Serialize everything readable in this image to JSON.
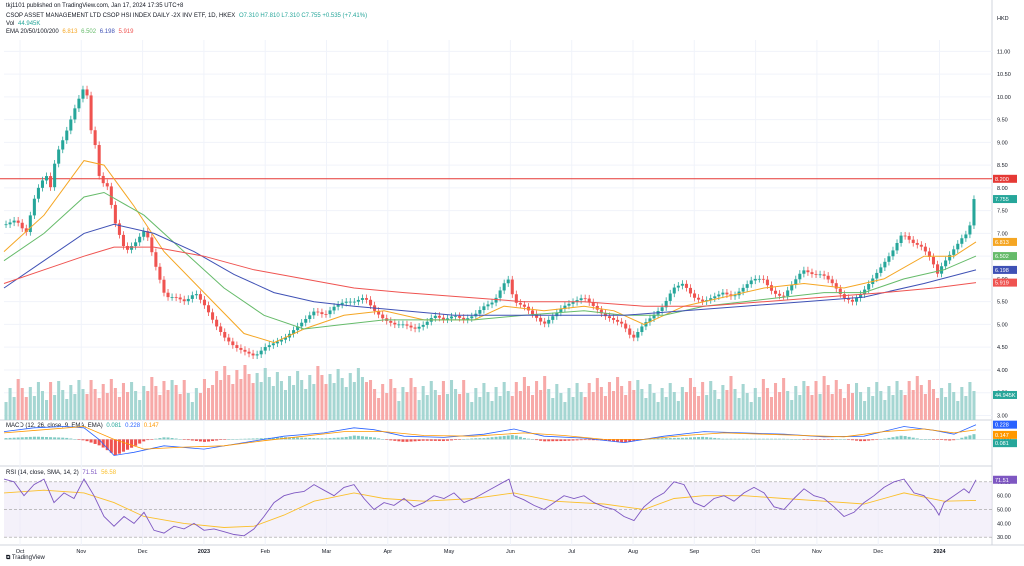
{
  "header": {
    "published": "tkj1101 published on TradingView.com, Jan 17, 2024 17:35 UTC+8",
    "symbol": "CSOP ASSET MANAGEMENT LTD CSOP HSI INDEX DAILY -2X INV ETF, 1D, HKEX",
    "ohlc": "O7.310  H7.810  L7.310  C7.755  +0.535 (+7.41%)",
    "vol_label": "Vol",
    "vol_value": "44.945K",
    "ema_label": "EMA 20/50/100/200",
    "ema_values": [
      "6.813",
      "6.502",
      "6.198",
      "5.919"
    ]
  },
  "macd_label": "MACD (12, 26, close, 9, EMA, EMA)",
  "macd_values": [
    "0.081",
    "0.228",
    "0.147"
  ],
  "rsi_label": "RSI (14, close, SMA, 14, 2)",
  "rsi_values": [
    "71.51",
    "56.58"
  ],
  "currency": "HKD",
  "footer": "TradingView",
  "colors": {
    "up": "#26a69a",
    "down": "#ef5350",
    "ema20": "#f5a623",
    "ema50": "#66bb6a",
    "ema100": "#3f51b5",
    "ema200": "#ef5350",
    "resistance": "#e53935",
    "rsi": "#7e57c2",
    "rsi_ma": "#fbc02d",
    "macd": "#2962ff",
    "signal": "#ff9800"
  },
  "chart_data": {
    "type": "candlestick",
    "x_labels": [
      "Oct",
      "Nov",
      "Dec",
      "2023",
      "Feb",
      "Mar",
      "Apr",
      "May",
      "Jun",
      "Jul",
      "Aug",
      "Sep",
      "Oct",
      "Nov",
      "Dec",
      "2024"
    ],
    "price_ticks": [
      "11.00",
      "10.50",
      "10.00",
      "9.50",
      "9.00",
      "8.50",
      "8.00",
      "7.50",
      "7.00",
      "6.50",
      "6.00",
      "5.50",
      "5.00",
      "4.50",
      "4.00",
      "3.50",
      "3.00"
    ],
    "ylim": [
      2.9,
      11.25
    ],
    "resistance": 8.2,
    "price_badges": [
      {
        "label": "8.200",
        "value": 8.2,
        "color": "#e53935"
      },
      {
        "label": "7.755",
        "value": 7.755,
        "color": "#26a69a"
      },
      {
        "label": "6.813",
        "value": 6.813,
        "color": "#f5a623"
      },
      {
        "label": "6.502",
        "value": 6.502,
        "color": "#66bb6a"
      },
      {
        "label": "6.198",
        "value": 6.198,
        "color": "#3f51b5"
      },
      {
        "label": "5.919",
        "value": 5.919,
        "color": "#ef5350"
      },
      {
        "label": "44.945K",
        "value": 3.45,
        "color": "#26a69a"
      }
    ],
    "close_path": [
      [
        0,
        7.2
      ],
      [
        10,
        7.3
      ],
      [
        20,
        7.0
      ],
      [
        30,
        7.9
      ],
      [
        40,
        8.3
      ],
      [
        45,
        8.0
      ],
      [
        50,
        8.7
      ],
      [
        60,
        9.2
      ],
      [
        70,
        9.8
      ],
      [
        80,
        10.3
      ],
      [
        85,
        9.3
      ],
      [
        90,
        8.9
      ],
      [
        95,
        8.0
      ],
      [
        100,
        8.2
      ],
      [
        110,
        7.2
      ],
      [
        120,
        6.6
      ],
      [
        130,
        6.8
      ],
      [
        140,
        7.1
      ],
      [
        150,
        6.3
      ],
      [
        160,
        5.6
      ],
      [
        170,
        5.6
      ],
      [
        180,
        5.5
      ],
      [
        190,
        5.7
      ],
      [
        200,
        5.4
      ],
      [
        210,
        5.0
      ],
      [
        220,
        4.7
      ],
      [
        230,
        4.5
      ],
      [
        240,
        4.4
      ],
      [
        250,
        4.3
      ],
      [
        260,
        4.5
      ],
      [
        270,
        4.6
      ],
      [
        280,
        4.7
      ],
      [
        290,
        4.9
      ],
      [
        300,
        5.1
      ],
      [
        310,
        5.3
      ],
      [
        320,
        5.2
      ],
      [
        330,
        5.4
      ],
      [
        340,
        5.5
      ],
      [
        350,
        5.5
      ],
      [
        360,
        5.6
      ],
      [
        370,
        5.3
      ],
      [
        380,
        5.1
      ],
      [
        390,
        5.0
      ],
      [
        400,
        5.0
      ],
      [
        410,
        4.9
      ],
      [
        420,
        5.0
      ],
      [
        430,
        5.2
      ],
      [
        440,
        5.1
      ],
      [
        450,
        5.2
      ],
      [
        460,
        5.1
      ],
      [
        470,
        5.2
      ],
      [
        480,
        5.4
      ],
      [
        490,
        5.5
      ],
      [
        500,
        5.9
      ],
      [
        505,
        6.0
      ],
      [
        510,
        5.5
      ],
      [
        520,
        5.4
      ],
      [
        530,
        5.2
      ],
      [
        540,
        5.0
      ],
      [
        550,
        5.2
      ],
      [
        560,
        5.4
      ],
      [
        570,
        5.5
      ],
      [
        580,
        5.6
      ],
      [
        590,
        5.4
      ],
      [
        600,
        5.2
      ],
      [
        610,
        5.1
      ],
      [
        620,
        5.0
      ],
      [
        625,
        4.8
      ],
      [
        630,
        4.7
      ],
      [
        640,
        5.0
      ],
      [
        650,
        5.2
      ],
      [
        660,
        5.4
      ],
      [
        670,
        5.8
      ],
      [
        680,
        5.9
      ],
      [
        690,
        5.6
      ],
      [
        700,
        5.5
      ],
      [
        710,
        5.6
      ],
      [
        720,
        5.7
      ],
      [
        730,
        5.6
      ],
      [
        740,
        5.8
      ],
      [
        750,
        6.0
      ],
      [
        760,
        6.0
      ],
      [
        770,
        5.7
      ],
      [
        780,
        5.6
      ],
      [
        790,
        5.9
      ],
      [
        800,
        6.2
      ],
      [
        810,
        6.1
      ],
      [
        820,
        6.1
      ],
      [
        830,
        5.9
      ],
      [
        840,
        5.6
      ],
      [
        850,
        5.5
      ],
      [
        860,
        5.7
      ],
      [
        870,
        6.0
      ],
      [
        880,
        6.3
      ],
      [
        890,
        6.6
      ],
      [
        900,
        7.0
      ],
      [
        910,
        6.8
      ],
      [
        920,
        6.7
      ],
      [
        930,
        6.4
      ],
      [
        935,
        6.1
      ],
      [
        940,
        6.3
      ],
      [
        950,
        6.6
      ],
      [
        960,
        6.9
      ],
      [
        965,
        7.0
      ],
      [
        970,
        7.3
      ],
      [
        972,
        7.755
      ]
    ],
    "ema20_path": [
      [
        0,
        6.6
      ],
      [
        40,
        7.4
      ],
      [
        80,
        8.6
      ],
      [
        100,
        8.5
      ],
      [
        130,
        7.6
      ],
      [
        160,
        6.6
      ],
      [
        200,
        5.7
      ],
      [
        240,
        4.8
      ],
      [
        270,
        4.6
      ],
      [
        300,
        4.9
      ],
      [
        340,
        5.2
      ],
      [
        380,
        5.3
      ],
      [
        420,
        5.1
      ],
      [
        470,
        5.1
      ],
      [
        500,
        5.4
      ],
      [
        540,
        5.3
      ],
      [
        580,
        5.4
      ],
      [
        610,
        5.3
      ],
      [
        640,
        5.0
      ],
      [
        680,
        5.4
      ],
      [
        720,
        5.6
      ],
      [
        760,
        5.8
      ],
      [
        800,
        5.9
      ],
      [
        840,
        5.8
      ],
      [
        880,
        6.0
      ],
      [
        920,
        6.5
      ],
      [
        950,
        6.5
      ],
      [
        972,
        6.813
      ]
    ],
    "ema50_path": [
      [
        0,
        6.4
      ],
      [
        40,
        7.0
      ],
      [
        80,
        7.8
      ],
      [
        100,
        7.9
      ],
      [
        140,
        7.4
      ],
      [
        180,
        6.6
      ],
      [
        220,
        5.8
      ],
      [
        260,
        5.2
      ],
      [
        300,
        4.9
      ],
      [
        340,
        5.0
      ],
      [
        380,
        5.1
      ],
      [
        420,
        5.1
      ],
      [
        470,
        5.1
      ],
      [
        520,
        5.2
      ],
      [
        580,
        5.3
      ],
      [
        620,
        5.2
      ],
      [
        660,
        5.2
      ],
      [
        700,
        5.4
      ],
      [
        740,
        5.5
      ],
      [
        780,
        5.6
      ],
      [
        820,
        5.7
      ],
      [
        860,
        5.7
      ],
      [
        900,
        6.0
      ],
      [
        940,
        6.2
      ],
      [
        972,
        6.502
      ]
    ],
    "ema100_path": [
      [
        0,
        5.8
      ],
      [
        40,
        6.4
      ],
      [
        80,
        7.0
      ],
      [
        110,
        7.2
      ],
      [
        150,
        7.0
      ],
      [
        190,
        6.6
      ],
      [
        230,
        6.1
      ],
      [
        270,
        5.7
      ],
      [
        310,
        5.5
      ],
      [
        350,
        5.4
      ],
      [
        400,
        5.3
      ],
      [
        450,
        5.2
      ],
      [
        500,
        5.2
      ],
      [
        560,
        5.2
      ],
      [
        620,
        5.2
      ],
      [
        680,
        5.3
      ],
      [
        740,
        5.4
      ],
      [
        800,
        5.5
      ],
      [
        860,
        5.6
      ],
      [
        920,
        5.9
      ],
      [
        972,
        6.198
      ]
    ],
    "ema200_path": [
      [
        0,
        5.9
      ],
      [
        40,
        6.2
      ],
      [
        80,
        6.5
      ],
      [
        110,
        6.7
      ],
      [
        150,
        6.7
      ],
      [
        200,
        6.5
      ],
      [
        250,
        6.2
      ],
      [
        300,
        6.0
      ],
      [
        350,
        5.8
      ],
      [
        400,
        5.7
      ],
      [
        460,
        5.6
      ],
      [
        520,
        5.5
      ],
      [
        580,
        5.5
      ],
      [
        640,
        5.4
      ],
      [
        700,
        5.4
      ],
      [
        760,
        5.5
      ],
      [
        820,
        5.6
      ],
      [
        880,
        5.7
      ],
      [
        930,
        5.8
      ],
      [
        972,
        5.919
      ]
    ],
    "macd_ticks": [
      "0.000"
    ],
    "macd_ylim": [
      -0.35,
      0.3
    ],
    "macd_line": [
      [
        0,
        0.12
      ],
      [
        30,
        0.18
      ],
      [
        60,
        0.2
      ],
      [
        80,
        0.18
      ],
      [
        95,
        0.0
      ],
      [
        110,
        -0.25
      ],
      [
        130,
        -0.2
      ],
      [
        160,
        -0.1
      ],
      [
        200,
        -0.15
      ],
      [
        240,
        -0.05
      ],
      [
        280,
        0.05
      ],
      [
        320,
        0.1
      ],
      [
        350,
        0.18
      ],
      [
        370,
        0.15
      ],
      [
        400,
        0.05
      ],
      [
        440,
        0.03
      ],
      [
        480,
        0.08
      ],
      [
        510,
        0.16
      ],
      [
        540,
        0.05
      ],
      [
        580,
        0.02
      ],
      [
        620,
        -0.05
      ],
      [
        660,
        0.05
      ],
      [
        700,
        0.12
      ],
      [
        740,
        0.1
      ],
      [
        780,
        0.08
      ],
      [
        820,
        0.04
      ],
      [
        860,
        0.05
      ],
      [
        900,
        0.2
      ],
      [
        930,
        0.14
      ],
      [
        950,
        0.08
      ],
      [
        972,
        0.228
      ]
    ],
    "signal_line": [
      [
        0,
        0.1
      ],
      [
        40,
        0.15
      ],
      [
        80,
        0.2
      ],
      [
        110,
        0.0
      ],
      [
        140,
        -0.15
      ],
      [
        180,
        -0.12
      ],
      [
        220,
        -0.1
      ],
      [
        260,
        -0.02
      ],
      [
        300,
        0.05
      ],
      [
        340,
        0.12
      ],
      [
        380,
        0.12
      ],
      [
        420,
        0.06
      ],
      [
        470,
        0.05
      ],
      [
        520,
        0.1
      ],
      [
        560,
        0.06
      ],
      [
        600,
        0.0
      ],
      [
        640,
        0.0
      ],
      [
        680,
        0.06
      ],
      [
        720,
        0.1
      ],
      [
        760,
        0.08
      ],
      [
        800,
        0.06
      ],
      [
        840,
        0.04
      ],
      [
        880,
        0.12
      ],
      [
        920,
        0.16
      ],
      [
        950,
        0.1
      ],
      [
        972,
        0.147
      ]
    ],
    "rsi_ticks": [
      "70.00",
      "60.00",
      "50.00",
      "40.00",
      "30.00"
    ],
    "rsi_ylim": [
      28,
      80
    ],
    "rsi_line": [
      [
        0,
        72
      ],
      [
        10,
        70
      ],
      [
        20,
        60
      ],
      [
        30,
        68
      ],
      [
        40,
        72
      ],
      [
        50,
        55
      ],
      [
        60,
        62
      ],
      [
        70,
        58
      ],
      [
        80,
        72
      ],
      [
        90,
        60
      ],
      [
        100,
        45
      ],
      [
        110,
        38
      ],
      [
        120,
        45
      ],
      [
        130,
        40
      ],
      [
        140,
        48
      ],
      [
        150,
        35
      ],
      [
        160,
        33
      ],
      [
        170,
        38
      ],
      [
        180,
        36
      ],
      [
        190,
        40
      ],
      [
        200,
        35
      ],
      [
        210,
        36
      ],
      [
        220,
        34
      ],
      [
        230,
        32
      ],
      [
        240,
        31
      ],
      [
        250,
        36
      ],
      [
        260,
        45
      ],
      [
        270,
        55
      ],
      [
        280,
        60
      ],
      [
        290,
        62
      ],
      [
        300,
        63
      ],
      [
        310,
        68
      ],
      [
        320,
        64
      ],
      [
        330,
        60
      ],
      [
        340,
        66
      ],
      [
        350,
        68
      ],
      [
        360,
        58
      ],
      [
        370,
        50
      ],
      [
        380,
        55
      ],
      [
        390,
        53
      ],
      [
        400,
        58
      ],
      [
        410,
        52
      ],
      [
        420,
        55
      ],
      [
        430,
        60
      ],
      [
        440,
        58
      ],
      [
        450,
        62
      ],
      [
        460,
        55
      ],
      [
        470,
        58
      ],
      [
        480,
        62
      ],
      [
        490,
        66
      ],
      [
        500,
        70
      ],
      [
        505,
        72
      ],
      [
        510,
        60
      ],
      [
        520,
        57
      ],
      [
        530,
        53
      ],
      [
        540,
        50
      ],
      [
        550,
        55
      ],
      [
        560,
        60
      ],
      [
        570,
        58
      ],
      [
        580,
        60
      ],
      [
        590,
        55
      ],
      [
        600,
        52
      ],
      [
        610,
        50
      ],
      [
        620,
        45
      ],
      [
        630,
        42
      ],
      [
        640,
        52
      ],
      [
        650,
        58
      ],
      [
        660,
        62
      ],
      [
        670,
        70
      ],
      [
        680,
        68
      ],
      [
        690,
        55
      ],
      [
        700,
        52
      ],
      [
        710,
        58
      ],
      [
        720,
        60
      ],
      [
        730,
        56
      ],
      [
        740,
        62
      ],
      [
        750,
        66
      ],
      [
        760,
        62
      ],
      [
        770,
        52
      ],
      [
        780,
        50
      ],
      [
        790,
        58
      ],
      [
        800,
        65
      ],
      [
        810,
        60
      ],
      [
        820,
        58
      ],
      [
        830,
        52
      ],
      [
        840,
        45
      ],
      [
        850,
        48
      ],
      [
        860,
        55
      ],
      [
        870,
        60
      ],
      [
        880,
        66
      ],
      [
        890,
        70
      ],
      [
        900,
        72
      ],
      [
        910,
        62
      ],
      [
        920,
        60
      ],
      [
        930,
        52
      ],
      [
        935,
        46
      ],
      [
        940,
        55
      ],
      [
        950,
        60
      ],
      [
        960,
        65
      ],
      [
        965,
        62
      ],
      [
        972,
        71.51
      ]
    ],
    "rsi_ma": [
      [
        0,
        62
      ],
      [
        40,
        64
      ],
      [
        80,
        62
      ],
      [
        110,
        55
      ],
      [
        140,
        45
      ],
      [
        180,
        40
      ],
      [
        220,
        37
      ],
      [
        250,
        38
      ],
      [
        280,
        46
      ],
      [
        310,
        56
      ],
      [
        350,
        62
      ],
      [
        380,
        58
      ],
      [
        420,
        56
      ],
      [
        470,
        58
      ],
      [
        510,
        62
      ],
      [
        550,
        56
      ],
      [
        600,
        54
      ],
      [
        640,
        50
      ],
      [
        670,
        58
      ],
      [
        700,
        60
      ],
      [
        740,
        60
      ],
      [
        780,
        58
      ],
      [
        820,
        56
      ],
      [
        860,
        54
      ],
      [
        900,
        62
      ],
      [
        940,
        56
      ],
      [
        972,
        56.58
      ]
    ]
  }
}
